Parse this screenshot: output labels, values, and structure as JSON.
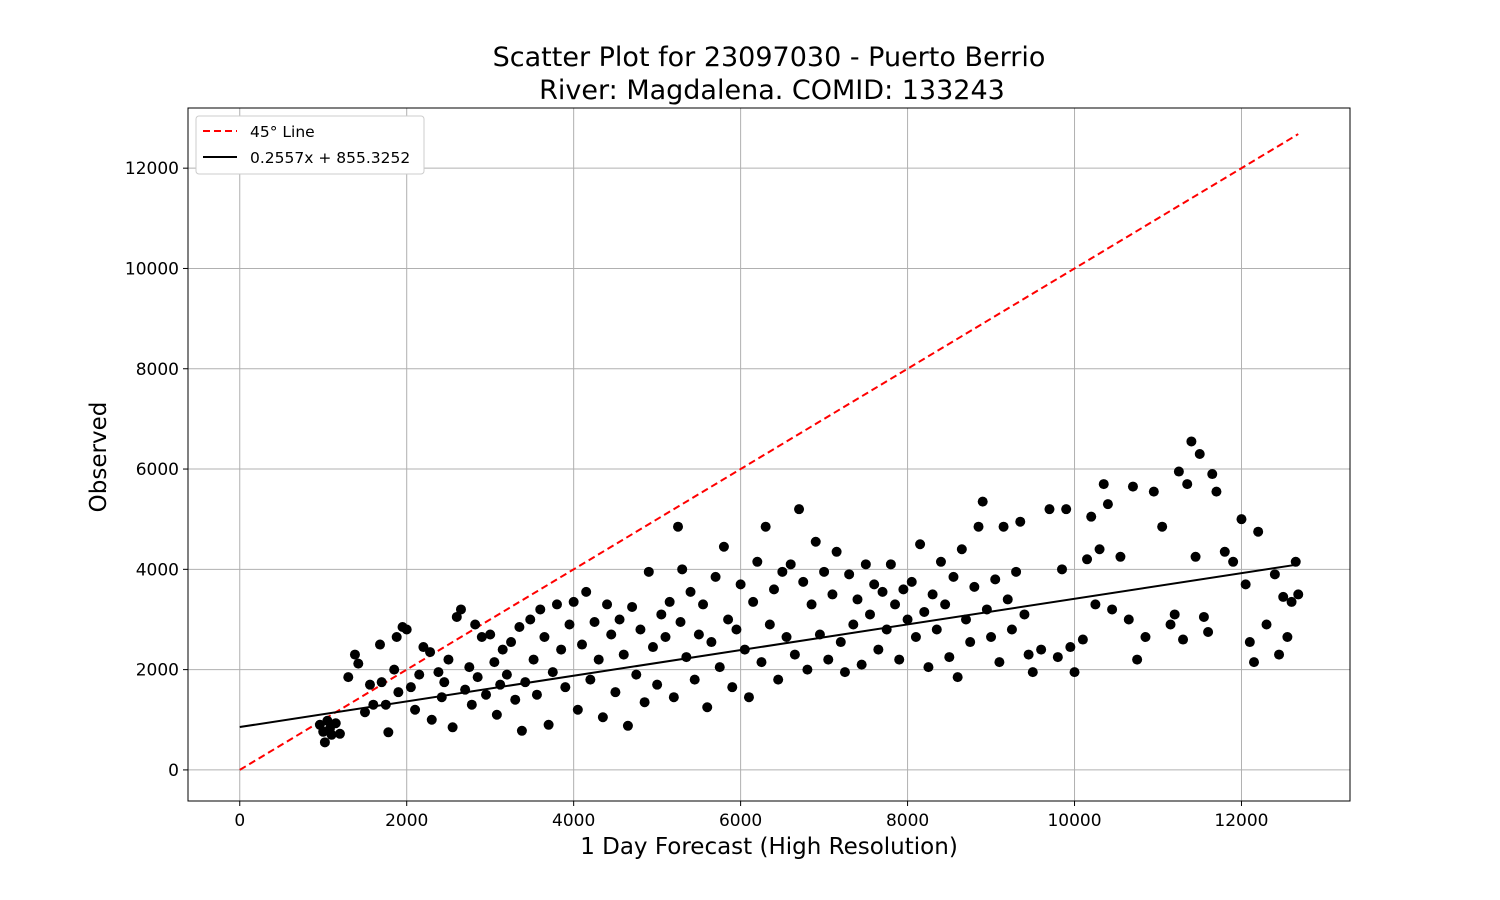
{
  "chart_data": {
    "type": "scatter",
    "title": "Scatter Plot for 23097030 - Puerto Berrio",
    "subtitle": "River: Magdalena. COMID: 133243",
    "xlabel": "1 Day Forecast (High Resolution)",
    "ylabel": "Observed",
    "xlim": [
      -620,
      13300
    ],
    "ylim": [
      -620,
      13200
    ],
    "xticks": [
      0,
      2000,
      4000,
      6000,
      8000,
      10000,
      12000
    ],
    "yticks": [
      0,
      2000,
      4000,
      6000,
      8000,
      10000,
      12000
    ],
    "grid": true,
    "legend_position": "top-left",
    "legend": [
      {
        "label": "45° Line",
        "style": "dashed",
        "color": "#ff0000"
      },
      {
        "label": "0.2557x + 855.3252",
        "style": "solid",
        "color": "#000000"
      }
    ],
    "reference_line": {
      "slope": 1,
      "intercept": 0,
      "x_range": [
        0,
        12680
      ],
      "color": "#ff0000"
    },
    "fit_line": {
      "slope": 0.2557,
      "intercept": 855.3252,
      "x_range": [
        0,
        12680
      ],
      "color": "#000000"
    },
    "point_color": "#000000",
    "series": [
      {
        "values": [
          [
            960,
            900
          ],
          [
            1000,
            760
          ],
          [
            1020,
            550
          ],
          [
            1050,
            980
          ],
          [
            1080,
            820
          ],
          [
            1100,
            700
          ],
          [
            1150,
            930
          ],
          [
            1200,
            720
          ],
          [
            1300,
            1850
          ],
          [
            1380,
            2300
          ],
          [
            1420,
            2120
          ],
          [
            1500,
            1150
          ],
          [
            1560,
            1700
          ],
          [
            1600,
            1300
          ],
          [
            1680,
            2500
          ],
          [
            1700,
            1750
          ],
          [
            1750,
            1300
          ],
          [
            1780,
            750
          ],
          [
            1850,
            2000
          ],
          [
            1880,
            2650
          ],
          [
            1900,
            1550
          ],
          [
            1950,
            2850
          ],
          [
            2000,
            2800
          ],
          [
            2050,
            1650
          ],
          [
            2100,
            1200
          ],
          [
            2150,
            1900
          ],
          [
            2200,
            2450
          ],
          [
            2280,
            2350
          ],
          [
            2300,
            1000
          ],
          [
            2380,
            1950
          ],
          [
            2420,
            1450
          ],
          [
            2450,
            1750
          ],
          [
            2500,
            2200
          ],
          [
            2550,
            850
          ],
          [
            2600,
            3050
          ],
          [
            2650,
            3200
          ],
          [
            2700,
            1600
          ],
          [
            2750,
            2050
          ],
          [
            2780,
            1300
          ],
          [
            2820,
            2900
          ],
          [
            2850,
            1850
          ],
          [
            2900,
            2650
          ],
          [
            2950,
            1500
          ],
          [
            3000,
            2700
          ],
          [
            3050,
            2150
          ],
          [
            3080,
            1100
          ],
          [
            3120,
            1700
          ],
          [
            3150,
            2400
          ],
          [
            3200,
            1900
          ],
          [
            3250,
            2550
          ],
          [
            3300,
            1400
          ],
          [
            3350,
            2850
          ],
          [
            3380,
            780
          ],
          [
            3420,
            1750
          ],
          [
            3480,
            3000
          ],
          [
            3520,
            2200
          ],
          [
            3560,
            1500
          ],
          [
            3600,
            3200
          ],
          [
            3650,
            2650
          ],
          [
            3700,
            900
          ],
          [
            3750,
            1950
          ],
          [
            3800,
            3300
          ],
          [
            3850,
            2400
          ],
          [
            3900,
            1650
          ],
          [
            3950,
            2900
          ],
          [
            4000,
            3350
          ],
          [
            4050,
            1200
          ],
          [
            4100,
            2500
          ],
          [
            4150,
            3550
          ],
          [
            4200,
            1800
          ],
          [
            4250,
            2950
          ],
          [
            4300,
            2200
          ],
          [
            4350,
            1050
          ],
          [
            4400,
            3300
          ],
          [
            4450,
            2700
          ],
          [
            4500,
            1550
          ],
          [
            4550,
            3000
          ],
          [
            4600,
            2300
          ],
          [
            4650,
            880
          ],
          [
            4700,
            3250
          ],
          [
            4750,
            1900
          ],
          [
            4800,
            2800
          ],
          [
            4850,
            1350
          ],
          [
            4900,
            3950
          ],
          [
            4950,
            2450
          ],
          [
            5000,
            1700
          ],
          [
            5050,
            3100
          ],
          [
            5100,
            2650
          ],
          [
            5150,
            3350
          ],
          [
            5200,
            1450
          ],
          [
            5250,
            4850
          ],
          [
            5280,
            2950
          ],
          [
            5300,
            4000
          ],
          [
            5350,
            2250
          ],
          [
            5400,
            3550
          ],
          [
            5450,
            1800
          ],
          [
            5500,
            2700
          ],
          [
            5550,
            3300
          ],
          [
            5600,
            1250
          ],
          [
            5650,
            2550
          ],
          [
            5700,
            3850
          ],
          [
            5750,
            2050
          ],
          [
            5800,
            4450
          ],
          [
            5850,
            3000
          ],
          [
            5900,
            1650
          ],
          [
            5950,
            2800
          ],
          [
            6000,
            3700
          ],
          [
            6050,
            2400
          ],
          [
            6100,
            1450
          ],
          [
            6150,
            3350
          ],
          [
            6200,
            4150
          ],
          [
            6250,
            2150
          ],
          [
            6300,
            4850
          ],
          [
            6350,
            2900
          ],
          [
            6400,
            3600
          ],
          [
            6450,
            1800
          ],
          [
            6500,
            3950
          ],
          [
            6550,
            2650
          ],
          [
            6600,
            4100
          ],
          [
            6650,
            2300
          ],
          [
            6700,
            5200
          ],
          [
            6750,
            3750
          ],
          [
            6800,
            2000
          ],
          [
            6850,
            3300
          ],
          [
            6900,
            4550
          ],
          [
            6950,
            2700
          ],
          [
            7000,
            3950
          ],
          [
            7050,
            2200
          ],
          [
            7100,
            3500
          ],
          [
            7150,
            4350
          ],
          [
            7200,
            2550
          ],
          [
            7250,
            1950
          ],
          [
            7300,
            3900
          ],
          [
            7350,
            2900
          ],
          [
            7400,
            3400
          ],
          [
            7450,
            2100
          ],
          [
            7500,
            4100
          ],
          [
            7550,
            3100
          ],
          [
            7600,
            3700
          ],
          [
            7650,
            2400
          ],
          [
            7700,
            3550
          ],
          [
            7750,
            2800
          ],
          [
            7800,
            4100
          ],
          [
            7850,
            3300
          ],
          [
            7900,
            2200
          ],
          [
            7950,
            3600
          ],
          [
            8000,
            3000
          ],
          [
            8050,
            3750
          ],
          [
            8100,
            2650
          ],
          [
            8150,
            4500
          ],
          [
            8200,
            3150
          ],
          [
            8250,
            2050
          ],
          [
            8300,
            3500
          ],
          [
            8350,
            2800
          ],
          [
            8400,
            4150
          ],
          [
            8450,
            3300
          ],
          [
            8500,
            2250
          ],
          [
            8550,
            3850
          ],
          [
            8600,
            1850
          ],
          [
            8650,
            4400
          ],
          [
            8700,
            3000
          ],
          [
            8750,
            2550
          ],
          [
            8800,
            3650
          ],
          [
            8850,
            4850
          ],
          [
            8900,
            5350
          ],
          [
            8950,
            3200
          ],
          [
            9000,
            2650
          ],
          [
            9050,
            3800
          ],
          [
            9100,
            2150
          ],
          [
            9150,
            4850
          ],
          [
            9200,
            3400
          ],
          [
            9250,
            2800
          ],
          [
            9300,
            3950
          ],
          [
            9350,
            4950
          ],
          [
            9400,
            3100
          ],
          [
            9450,
            2300
          ],
          [
            9500,
            1950
          ],
          [
            9600,
            2400
          ],
          [
            9700,
            5200
          ],
          [
            9800,
            2250
          ],
          [
            9850,
            4000
          ],
          [
            9900,
            5200
          ],
          [
            9950,
            2450
          ],
          [
            10000,
            1950
          ],
          [
            10100,
            2600
          ],
          [
            10150,
            4200
          ],
          [
            10200,
            5050
          ],
          [
            10250,
            3300
          ],
          [
            10300,
            4400
          ],
          [
            10350,
            5700
          ],
          [
            10400,
            5300
          ],
          [
            10450,
            3200
          ],
          [
            10550,
            4250
          ],
          [
            10650,
            3000
          ],
          [
            10700,
            5650
          ],
          [
            10750,
            2200
          ],
          [
            10850,
            2650
          ],
          [
            10950,
            5550
          ],
          [
            11050,
            4850
          ],
          [
            11150,
            2900
          ],
          [
            11200,
            3100
          ],
          [
            11250,
            5950
          ],
          [
            11300,
            2600
          ],
          [
            11350,
            5700
          ],
          [
            11400,
            6550
          ],
          [
            11450,
            4250
          ],
          [
            11500,
            6300
          ],
          [
            11550,
            3050
          ],
          [
            11600,
            2750
          ],
          [
            11650,
            5900
          ],
          [
            11700,
            5550
          ],
          [
            11800,
            4350
          ],
          [
            11900,
            4150
          ],
          [
            12000,
            5000
          ],
          [
            12050,
            3700
          ],
          [
            12100,
            2550
          ],
          [
            12150,
            2150
          ],
          [
            12200,
            4750
          ],
          [
            12300,
            2900
          ],
          [
            12400,
            3900
          ],
          [
            12450,
            2300
          ],
          [
            12500,
            3450
          ],
          [
            12550,
            2650
          ],
          [
            12600,
            3350
          ],
          [
            12650,
            4150
          ],
          [
            12680,
            3500
          ]
        ]
      }
    ]
  }
}
